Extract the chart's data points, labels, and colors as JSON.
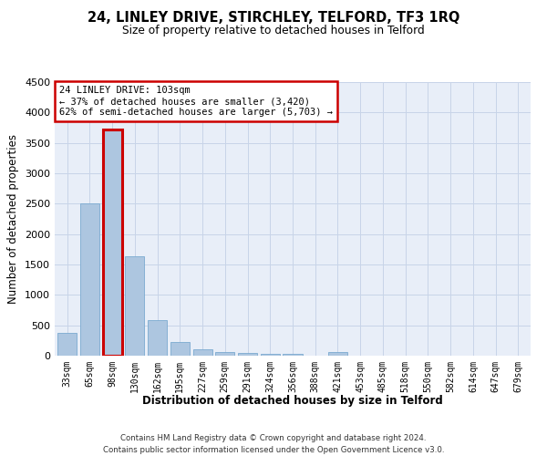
{
  "title_line1": "24, LINLEY DRIVE, STIRCHLEY, TELFORD, TF3 1RQ",
  "title_line2": "Size of property relative to detached houses in Telford",
  "xlabel": "Distribution of detached houses by size in Telford",
  "ylabel": "Number of detached properties",
  "footnote": "Contains HM Land Registry data © Crown copyright and database right 2024.\nContains public sector information licensed under the Open Government Licence v3.0.",
  "bins": [
    "33sqm",
    "65sqm",
    "98sqm",
    "130sqm",
    "162sqm",
    "195sqm",
    "227sqm",
    "259sqm",
    "291sqm",
    "324sqm",
    "356sqm",
    "388sqm",
    "421sqm",
    "453sqm",
    "485sqm",
    "518sqm",
    "550sqm",
    "582sqm",
    "614sqm",
    "647sqm",
    "679sqm"
  ],
  "values": [
    375,
    2500,
    3720,
    1630,
    590,
    230,
    110,
    65,
    40,
    30,
    28,
    5,
    58,
    5,
    0,
    0,
    0,
    0,
    0,
    0,
    0
  ],
  "highlight_bin": 2,
  "bar_color": "#adc6e0",
  "highlight_outline_color": "#cc0000",
  "ylim": [
    0,
    4500
  ],
  "yticks": [
    0,
    500,
    1000,
    1500,
    2000,
    2500,
    3000,
    3500,
    4000,
    4500
  ],
  "annotation_text": "24 LINLEY DRIVE: 103sqm\n← 37% of detached houses are smaller (3,420)\n62% of semi-detached houses are larger (5,703) →",
  "annotation_box_color": "#ffffff",
  "annotation_outline_color": "#cc0000",
  "grid_color": "#c8d4e8",
  "background_color": "#e8eef8",
  "fig_bg": "#ffffff"
}
